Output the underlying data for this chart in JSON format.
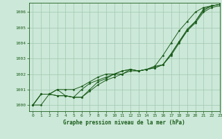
{
  "title": "Graphe pression niveau de la mer (hPa)",
  "background_color": "#cce8d8",
  "grid_color": "#a0c8b0",
  "line_color": "#1a5c1a",
  "xlim": [
    -0.5,
    23
  ],
  "ylim": [
    999.6,
    1006.6
  ],
  "yticks": [
    1000,
    1001,
    1002,
    1003,
    1004,
    1005,
    1006
  ],
  "xticks": [
    0,
    1,
    2,
    3,
    4,
    5,
    6,
    7,
    8,
    9,
    10,
    11,
    12,
    13,
    14,
    15,
    16,
    17,
    18,
    19,
    20,
    21,
    22,
    23
  ],
  "series": [
    [
      1000.0,
      1000.7,
      1000.7,
      1001.0,
      1000.6,
      1000.5,
      1000.5,
      1001.0,
      1001.5,
      1001.7,
      1002.0,
      1002.2,
      1002.3,
      1002.2,
      1002.3,
      1002.4,
      1002.6,
      1003.2,
      1004.0,
      1004.8,
      1005.3,
      1006.0,
      1006.3,
      1006.4
    ],
    [
      1000.0,
      1000.7,
      1000.7,
      1000.6,
      1000.6,
      1000.5,
      1000.5,
      1000.9,
      1001.3,
      1001.6,
      1001.8,
      1002.0,
      1002.2,
      1002.2,
      1002.3,
      1002.5,
      1002.6,
      1003.3,
      1004.1,
      1004.8,
      1005.4,
      1006.1,
      1006.4,
      1006.5
    ],
    [
      1000.0,
      1000.7,
      1000.7,
      1000.6,
      1000.6,
      1000.5,
      1001.0,
      1001.4,
      1001.6,
      1001.8,
      1002.0,
      1002.2,
      1002.3,
      1002.2,
      1002.3,
      1002.4,
      1002.6,
      1003.3,
      1004.1,
      1004.9,
      1005.4,
      1006.2,
      1006.4,
      1006.5
    ],
    [
      1000.0,
      1000.0,
      1000.7,
      1001.0,
      1001.0,
      1001.0,
      1001.2,
      1001.5,
      1001.8,
      1002.0,
      1002.0,
      1002.0,
      1002.3,
      1002.2,
      1002.3,
      1002.5,
      1003.2,
      1004.0,
      1004.8,
      1005.4,
      1006.0,
      1006.3,
      1006.4,
      1006.5
    ]
  ],
  "marker": "D",
  "markersize": 1.5,
  "linewidth": 0.7,
  "xlabel_fontsize": 5.5,
  "tick_fontsize": 4.5,
  "ytick_fontsize": 4.5
}
